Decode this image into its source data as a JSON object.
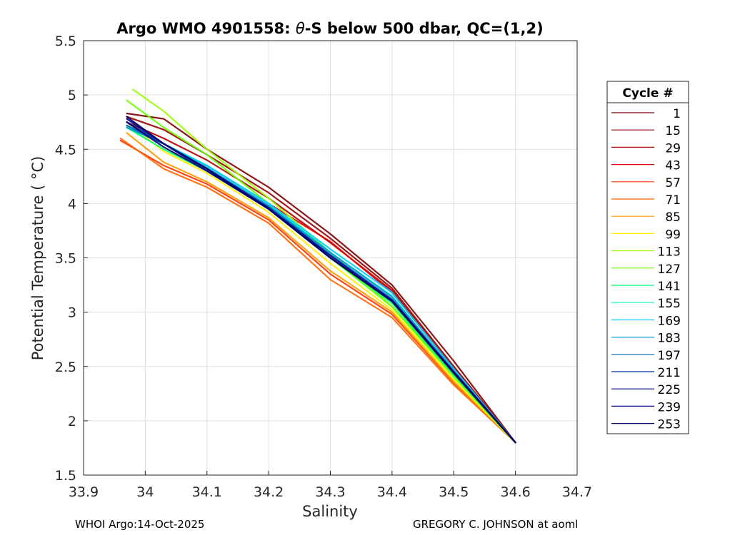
{
  "chart_data": {
    "type": "line",
    "title_prefix": "Argo WMO 4901558: ",
    "title_symbol": "θ",
    "title_suffix": "-S below 500 dbar,  QC=(1,2)",
    "xlabel": "Salinity",
    "ylabel": "Potential Temperature ( °C)",
    "xlim": [
      33.9,
      34.7
    ],
    "ylim": [
      1.5,
      5.5
    ],
    "xticks": [
      "33.9",
      "34",
      "34.1",
      "34.2",
      "34.3",
      "34.4",
      "34.5",
      "34.6",
      "34.7"
    ],
    "yticks": [
      "1.5",
      "2",
      "2.5",
      "3",
      "3.5",
      "4",
      "4.5",
      "5",
      "5.5"
    ],
    "grid": true,
    "legend_title": "Cycle #",
    "legend_position": "right",
    "series": [
      {
        "name": "1",
        "color": "#7f0000",
        "x": [
          33.97,
          34.03,
          34.1,
          34.2,
          34.3,
          34.4,
          34.5,
          34.6
        ],
        "y": [
          4.83,
          4.78,
          4.5,
          4.15,
          3.72,
          3.25,
          2.55,
          1.8
        ]
      },
      {
        "name": "15",
        "color": "#990000",
        "x": [
          33.97,
          34.03,
          34.1,
          34.2,
          34.3,
          34.4,
          34.5,
          34.6
        ],
        "y": [
          4.8,
          4.68,
          4.45,
          4.1,
          3.68,
          3.22,
          2.5,
          1.8
        ]
      },
      {
        "name": "29",
        "color": "#b30000",
        "x": [
          33.97,
          34.03,
          34.1,
          34.2,
          34.3,
          34.4,
          34.5,
          34.6
        ],
        "y": [
          4.75,
          4.6,
          4.4,
          4.05,
          3.64,
          3.2,
          2.5,
          1.8
        ]
      },
      {
        "name": "43",
        "color": "#e60000",
        "x": [
          33.97,
          34.03,
          34.1,
          34.2,
          34.3,
          34.4,
          34.5,
          34.6
        ],
        "y": [
          4.7,
          4.55,
          4.35,
          4.0,
          3.65,
          3.18,
          2.48,
          1.8
        ]
      },
      {
        "name": "57",
        "color": "#ff3300",
        "x": [
          33.96,
          34.03,
          34.1,
          34.2,
          34.3,
          34.4,
          34.5,
          34.6
        ],
        "y": [
          4.58,
          4.35,
          4.18,
          3.85,
          3.35,
          2.98,
          2.35,
          1.8
        ]
      },
      {
        "name": "71",
        "color": "#ff6600",
        "x": [
          33.96,
          34.03,
          34.1,
          34.2,
          34.3,
          34.4,
          34.5,
          34.6
        ],
        "y": [
          4.6,
          4.32,
          4.15,
          3.82,
          3.3,
          2.95,
          2.33,
          1.8
        ]
      },
      {
        "name": "85",
        "color": "#ff9900",
        "x": [
          33.97,
          34.03,
          34.1,
          34.2,
          34.3,
          34.4,
          34.5,
          34.6
        ],
        "y": [
          4.65,
          4.38,
          4.2,
          3.87,
          3.38,
          3.0,
          2.36,
          1.8
        ]
      },
      {
        "name": "99",
        "color": "#ffee00",
        "x": [
          33.97,
          34.03,
          34.1,
          34.2,
          34.3,
          34.4,
          34.5,
          34.6
        ],
        "y": [
          4.75,
          4.48,
          4.28,
          3.92,
          3.45,
          3.02,
          2.38,
          1.8
        ]
      },
      {
        "name": "113",
        "color": "#99ff00",
        "x": [
          33.98,
          34.03,
          34.1,
          34.2,
          34.3,
          34.4,
          34.5,
          34.6
        ],
        "y": [
          5.05,
          4.85,
          4.5,
          4.05,
          3.55,
          3.05,
          2.4,
          1.8
        ]
      },
      {
        "name": "127",
        "color": "#66ff00",
        "x": [
          33.97,
          34.03,
          34.1,
          34.2,
          34.3,
          34.4,
          34.5,
          34.6
        ],
        "y": [
          4.95,
          4.7,
          4.45,
          4.0,
          3.5,
          3.05,
          2.42,
          1.8
        ]
      },
      {
        "name": "141",
        "color": "#00ff66",
        "x": [
          33.97,
          34.03,
          34.1,
          34.2,
          34.3,
          34.4,
          34.5,
          34.6
        ],
        "y": [
          4.7,
          4.5,
          4.3,
          3.95,
          3.5,
          3.08,
          2.42,
          1.8
        ]
      },
      {
        "name": "155",
        "color": "#00ffcc",
        "x": [
          33.97,
          34.03,
          34.1,
          34.2,
          34.3,
          34.4,
          34.5,
          34.6
        ],
        "y": [
          4.7,
          4.55,
          4.35,
          4.0,
          3.55,
          3.15,
          2.45,
          1.8
        ]
      },
      {
        "name": "169",
        "color": "#00ccff",
        "x": [
          33.97,
          34.03,
          34.1,
          34.2,
          34.3,
          34.4,
          34.5,
          34.6
        ],
        "y": [
          4.72,
          4.55,
          4.35,
          4.0,
          3.58,
          3.18,
          2.48,
          1.8
        ]
      },
      {
        "name": "183",
        "color": "#0099cc",
        "x": [
          33.97,
          34.03,
          34.1,
          34.2,
          34.3,
          34.4,
          34.5,
          34.6
        ],
        "y": [
          4.7,
          4.55,
          4.33,
          3.98,
          3.55,
          3.14,
          2.46,
          1.8
        ]
      },
      {
        "name": "197",
        "color": "#0066b3",
        "x": [
          33.97,
          34.03,
          34.1,
          34.2,
          34.3,
          34.4,
          34.5,
          34.6
        ],
        "y": [
          4.72,
          4.55,
          4.32,
          3.97,
          3.53,
          3.12,
          2.45,
          1.8
        ]
      },
      {
        "name": "211",
        "color": "#003399",
        "x": [
          33.97,
          34.03,
          34.1,
          34.2,
          34.3,
          34.4,
          34.5,
          34.6
        ],
        "y": [
          4.75,
          4.55,
          4.3,
          3.95,
          3.5,
          3.1,
          2.44,
          1.8
        ]
      },
      {
        "name": "225",
        "color": "#000080",
        "x": [
          33.97,
          34.03,
          34.1,
          34.2,
          34.3,
          34.4,
          34.5,
          34.6
        ],
        "y": [
          4.75,
          4.52,
          4.3,
          3.95,
          3.5,
          3.1,
          2.44,
          1.8
        ]
      },
      {
        "name": "239",
        "color": "#00008b",
        "x": [
          33.97,
          34.03,
          34.1,
          34.2,
          34.3,
          34.4,
          34.5,
          34.6
        ],
        "y": [
          4.78,
          4.55,
          4.32,
          3.96,
          3.52,
          3.11,
          2.45,
          1.8
        ]
      },
      {
        "name": "253",
        "color": "#000066",
        "x": [
          33.97,
          34.03,
          34.1,
          34.2,
          34.3,
          34.4,
          34.5,
          34.6
        ],
        "y": [
          4.8,
          4.55,
          4.32,
          3.95,
          3.5,
          3.1,
          2.45,
          1.8
        ]
      }
    ]
  },
  "footer": {
    "left": "WHOI Argo:14-Oct-2025",
    "right": "GREGORY C. JOHNSON at aoml"
  }
}
